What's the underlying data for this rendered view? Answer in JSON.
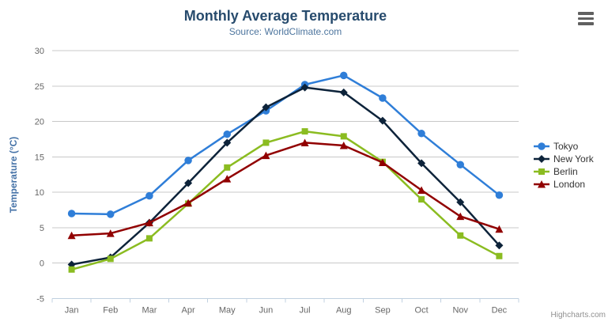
{
  "chart": {
    "title": "Monthly Average Temperature",
    "subtitle": "Source: WorldClimate.com",
    "credits": "Highcharts.com",
    "menu_icon": "hamburger-icon",
    "title_color": "#274b6d",
    "subtitle_color": "#4d759e",
    "axis_title_color": "#4572a7",
    "label_color": "#666666",
    "grid_color": "#c8c8c8",
    "axis_line_color": "#c0d0e0",
    "legend_text_color": "#333333",
    "background_color": "#ffffff"
  },
  "chart_data": {
    "type": "line",
    "title": "Monthly Average Temperature",
    "subtitle": "Source: WorldClimate.com",
    "categories": [
      "Jan",
      "Feb",
      "Mar",
      "Apr",
      "May",
      "Jun",
      "Jul",
      "Aug",
      "Sep",
      "Oct",
      "Nov",
      "Dec"
    ],
    "xlabel": "",
    "ylabel": "Temperature (°C)",
    "ylim": [
      -5,
      30
    ],
    "yticks": [
      30,
      25,
      20,
      15,
      10,
      5,
      0,
      -5
    ],
    "grid": true,
    "legend_position": "right",
    "series": [
      {
        "name": "Tokyo",
        "color": "#2f7ed8",
        "marker": "circle",
        "values": [
          7.0,
          6.9,
          9.5,
          14.5,
          18.2,
          21.5,
          25.2,
          26.5,
          23.3,
          18.3,
          13.9,
          9.6
        ]
      },
      {
        "name": "New York",
        "color": "#0d233a",
        "marker": "diamond",
        "values": [
          -0.2,
          0.8,
          5.7,
          11.3,
          17.0,
          22.0,
          24.8,
          24.1,
          20.1,
          14.1,
          8.6,
          2.5
        ]
      },
      {
        "name": "Berlin",
        "color": "#8bbc21",
        "marker": "square",
        "values": [
          -0.9,
          0.6,
          3.5,
          8.4,
          13.5,
          17.0,
          18.6,
          17.9,
          14.3,
          9.0,
          3.9,
          1.0
        ]
      },
      {
        "name": "London",
        "color": "#910000",
        "marker": "triangle",
        "values": [
          3.9,
          4.2,
          5.7,
          8.5,
          11.9,
          15.2,
          17.0,
          16.6,
          14.2,
          10.3,
          6.6,
          4.8
        ]
      }
    ]
  }
}
